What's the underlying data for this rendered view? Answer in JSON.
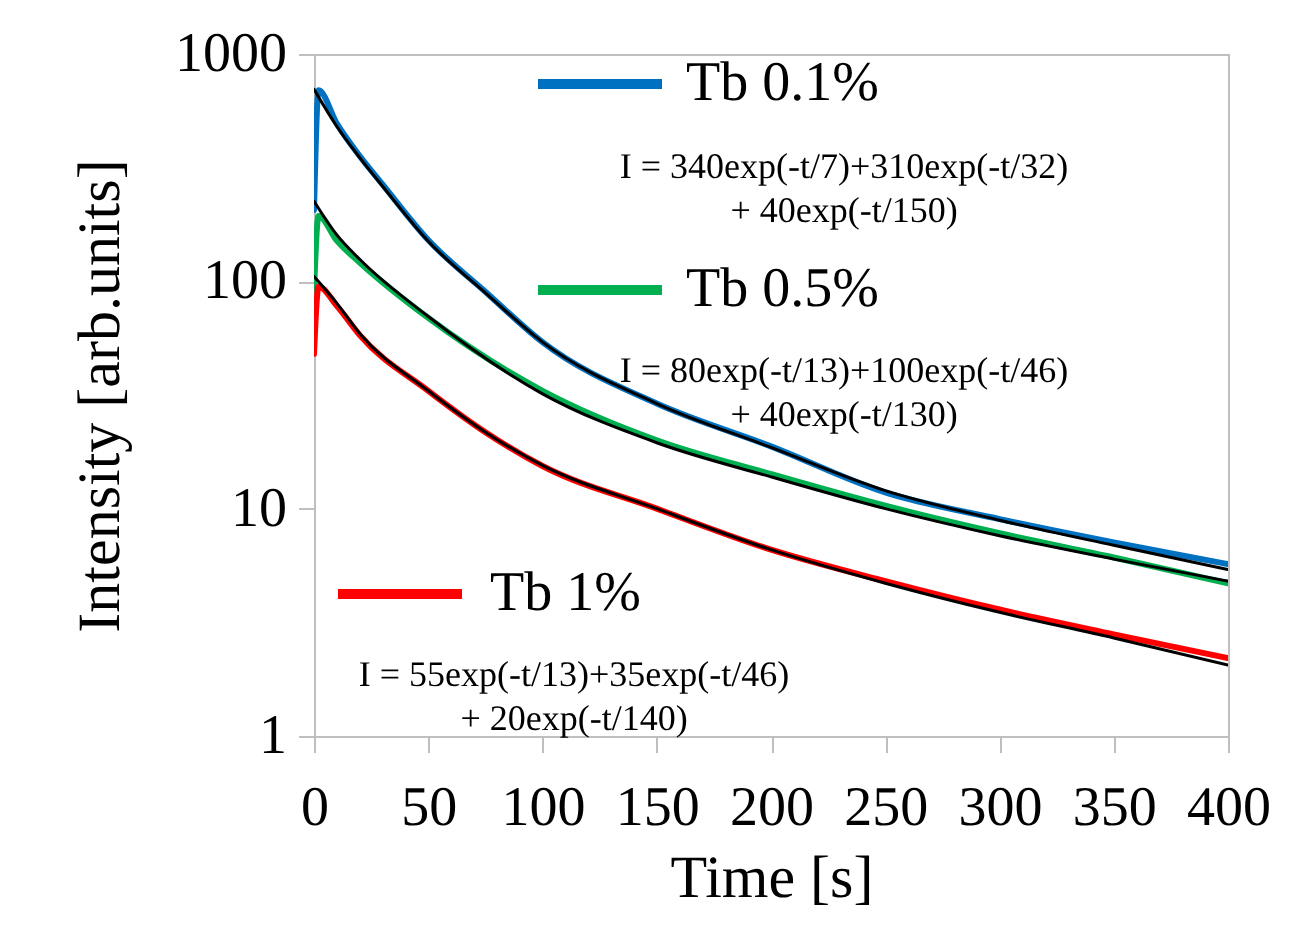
{
  "chart_data": {
    "type": "line",
    "xlabel": "Time [s]",
    "ylabel": "Intensity [arb.units]",
    "xlim": [
      0,
      400
    ],
    "xticks": [
      0,
      50,
      100,
      150,
      200,
      250,
      300,
      350,
      400
    ],
    "ylim": [
      1,
      1000
    ],
    "yticks": [
      1,
      10,
      100,
      1000
    ],
    "log": "y",
    "grid": false,
    "legend": "top",
    "line_style": "solid",
    "series": [
      {
        "name": "Tb 0.1%",
        "color": "#0070c0",
        "x": [
          0,
          2,
          10,
          20,
          30,
          50,
          75,
          100,
          150,
          200,
          250,
          300,
          350,
          400
        ],
        "values": [
          206,
          693,
          494,
          356,
          267,
          152,
          90,
          54,
          29,
          18.8,
          11.8,
          9.0,
          7.1,
          5.7
        ]
      },
      {
        "name": "Tb 0.5%",
        "color": "#00b050",
        "x": [
          0,
          2,
          10,
          20,
          50,
          100,
          150,
          200,
          250,
          300,
          350,
          400
        ],
        "values": [
          91,
          194,
          151,
          121,
          69,
          33,
          20,
          14.2,
          10.3,
          7.8,
          6.1,
          4.7
        ]
      },
      {
        "name": "Tb 1%",
        "color": "#ff0000",
        "x": [
          0,
          2,
          10,
          20,
          50,
          75,
          100,
          150,
          200,
          250,
          300,
          350,
          400
        ],
        "values": [
          48,
          95,
          78,
          58,
          33,
          21.7,
          15.4,
          10,
          6.6,
          4.8,
          3.6,
          2.8,
          2.2
        ]
      },
      {
        "color": "#000000",
        "x": [
          0,
          10,
          20,
          30,
          50,
          75,
          100,
          150,
          200,
          250,
          300,
          350,
          400
        ],
        "values": [
          700,
          480,
          350,
          262,
          150,
          89,
          54,
          29,
          18.6,
          12.0,
          8.9,
          6.9,
          5.4
        ]
      },
      {
        "color": "#000000",
        "x": [
          0,
          10,
          20,
          50,
          100,
          150,
          200,
          250,
          300,
          350,
          400
        ],
        "values": [
          225,
          160,
          125,
          70,
          32,
          19.5,
          13.8,
          10,
          7.6,
          6.0,
          4.8
        ]
      },
      {
        "color": "#000000",
        "x": [
          0,
          10,
          20,
          50,
          75,
          100,
          150,
          200,
          250,
          300,
          350,
          400
        ],
        "values": [
          105,
          80,
          59,
          33,
          21.7,
          15.5,
          10,
          6.6,
          4.7,
          3.5,
          2.7,
          2.05
        ]
      }
    ],
    "annotations": [
      "I = 340exp(-t/7)+310exp(-t/32)\n+ 40exp(-t/150)",
      "I = 80exp(-t/13)+100exp(-t/46)\n+ 40exp(-t/130)",
      "I = 55exp(-t/13)+35exp(-t/46)\n+ 20exp(-t/140)"
    ]
  }
}
